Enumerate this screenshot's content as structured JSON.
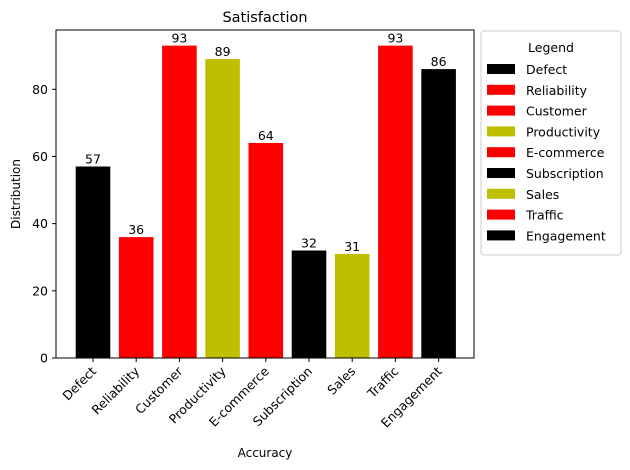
{
  "chart_data": {
    "type": "bar",
    "title": "Satisfaction",
    "xlabel": "Accuracy",
    "ylabel": "Distribution",
    "categories": [
      "Defect",
      "Reliability",
      "Customer",
      "Productivity",
      "E-commerce",
      "Subscription",
      "Sales",
      "Traffic",
      "Engagement"
    ],
    "values": [
      57,
      36,
      93,
      89,
      64,
      32,
      31,
      93,
      86
    ],
    "colors": [
      "#000000",
      "#ff0000",
      "#ff0000",
      "#bfbf00",
      "#ff0000",
      "#000000",
      "#bfbf00",
      "#ff0000",
      "#000000"
    ],
    "ylim": [
      0,
      97.65
    ],
    "yticks": [
      0,
      20,
      40,
      60,
      80
    ],
    "grid": false,
    "legend": {
      "title": "Legend",
      "placement": "outside-right-top",
      "entries": [
        "Defect",
        "Reliability",
        "Customer",
        "Productivity",
        "E-commerce",
        "Subscription",
        "Sales",
        "Traffic",
        "Engagement"
      ]
    }
  }
}
